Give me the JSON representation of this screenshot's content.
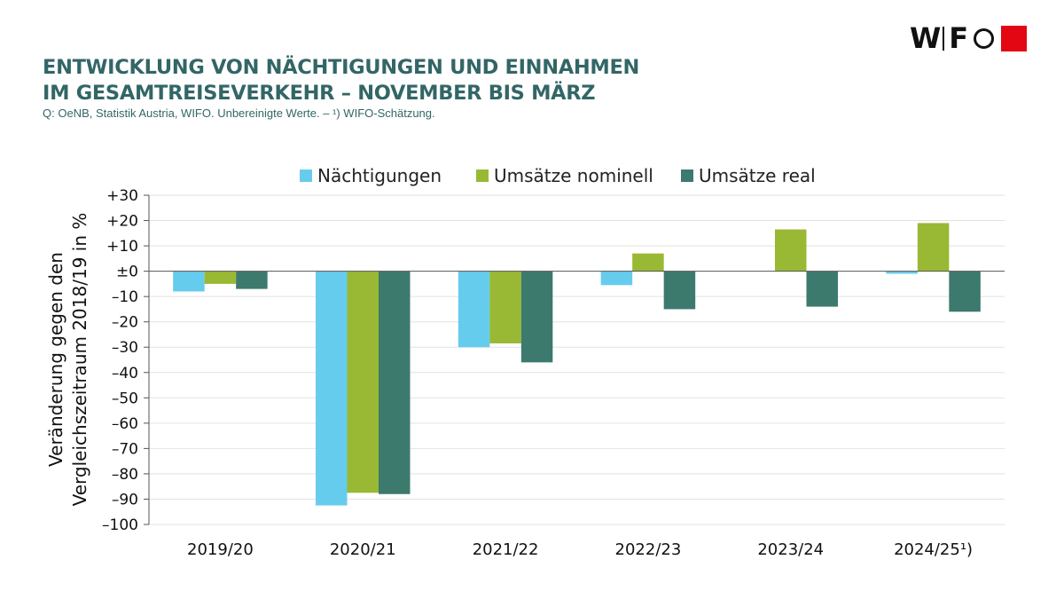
{
  "logo": {
    "text_left": "W",
    "text_mid": "F",
    "name": "WIFO"
  },
  "header": {
    "title_line1": "ENTWICKLUNG VON NÄCHTIGUNGEN UND EINNAHMEN",
    "title_line2": "IM GESAMTREISEVERKEHR – NOVEMBER BIS MÄRZ",
    "source": "Q: OeNB, Statistik Austria, WIFO. Unbereinigte Werte. – ¹) WIFO-Schätzung."
  },
  "chart_data": {
    "type": "bar",
    "title": "",
    "ylabel_line1": "Veränderung gegen den",
    "ylabel_line2": "Vergleichszeitraum 2018/19 in %",
    "xlabel": "",
    "ylim": [
      -100,
      30
    ],
    "yticks": [
      30,
      20,
      10,
      0,
      -10,
      -20,
      -30,
      -40,
      -50,
      -60,
      -70,
      -80,
      -90,
      -100
    ],
    "ytick_labels": [
      "+30",
      "+20",
      "+10",
      "±0",
      "–10",
      "–20",
      "–30",
      "–40",
      "–50",
      "–60",
      "–70",
      "–80",
      "–90",
      "–100"
    ],
    "grid": true,
    "legend_position": "top-center",
    "categories": [
      "2019/20",
      "2020/21",
      "2021/22",
      "2022/23",
      "2023/24",
      "2024/25¹)"
    ],
    "series": [
      {
        "name": "Nächtigungen",
        "color": "#66ccee",
        "values": [
          -8,
          -92.5,
          -30,
          -5.5,
          0,
          -1
        ]
      },
      {
        "name": "Umsätze nominell",
        "color": "#99b833",
        "values": [
          -5,
          -87.5,
          -28.5,
          7,
          16.5,
          19
        ]
      },
      {
        "name": "Umsätze real",
        "color": "#3d7a6e",
        "values": [
          -7,
          -88,
          -36,
          -15,
          -14,
          -16
        ]
      }
    ]
  }
}
